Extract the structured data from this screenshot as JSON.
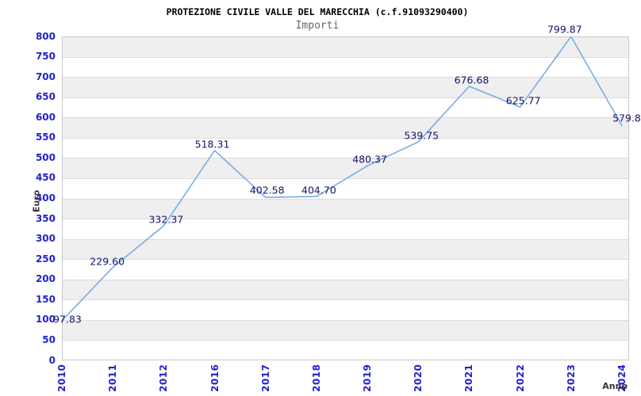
{
  "chart_data": {
    "type": "line",
    "title": "PROTEZIONE CIVILE VALLE DEL MARECCHIA (c.f.91093290400)",
    "subtitle": "Importi",
    "xlabel": "Anno",
    "ylabel": "Euro",
    "categories": [
      "2010",
      "2011",
      "2012",
      "2016",
      "2017",
      "2018",
      "2019",
      "2020",
      "2021",
      "2022",
      "2023",
      "2024"
    ],
    "series": [
      {
        "name": "Importi",
        "values": [
          97.83,
          229.6,
          332.37,
          518.31,
          402.58,
          404.7,
          480.37,
          539.75,
          676.68,
          625.77,
          799.87,
          579.8
        ]
      }
    ],
    "point_labels": [
      "97.83",
      "229.60",
      "332.37",
      "518.31",
      "402.58",
      "404.70",
      "480.37",
      "539.75",
      "676.68",
      "625.77",
      "799.87",
      "579.8"
    ],
    "ylim": [
      0,
      800
    ],
    "ytick_step": 50,
    "grid": "horizontal-alternating-bands",
    "legend": "none",
    "colors": {
      "line": "#79ade2",
      "tick_label": "#2222cc",
      "point_label": "#14146a",
      "band": "#efefef",
      "gridline": "#dcdcdc",
      "plot_border": "#c8c8c8",
      "title": "#000000",
      "subtitle": "#666666",
      "axis_title": "#333333"
    },
    "label_offsets": {
      "dx": [
        7,
        -7,
        3,
        -3,
        2,
        3,
        3,
        4,
        3,
        4,
        -8,
        6
      ],
      "dy": [
        -2,
        -8,
        -8,
        -8,
        -9,
        -8,
        -8,
        -8,
        -8,
        -8,
        -9,
        -10
      ]
    }
  }
}
